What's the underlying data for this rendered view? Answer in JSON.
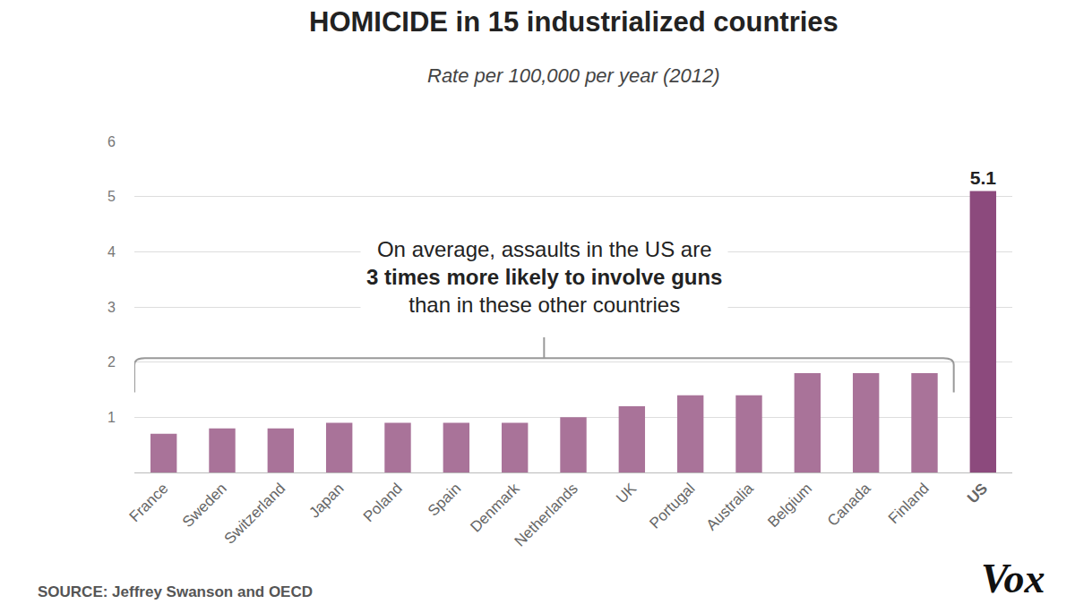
{
  "chart_data": {
    "type": "bar",
    "title": "HOMICIDE in 15 industrialized countries",
    "subtitle": "Rate per 100,000 per year (2012)",
    "categories": [
      "France",
      "Sweden",
      "Switzerland",
      "Japan",
      "Poland",
      "Spain",
      "Denmark",
      "Netherlands",
      "UK",
      "Portugal",
      "Australia",
      "Belgium",
      "Canada",
      "Finland",
      "US"
    ],
    "values": [
      0.7,
      0.8,
      0.8,
      0.9,
      0.9,
      0.9,
      0.9,
      1.0,
      1.2,
      1.4,
      1.4,
      1.8,
      1.8,
      1.8,
      5.1
    ],
    "value_labels": [
      null,
      null,
      null,
      null,
      null,
      null,
      null,
      null,
      null,
      null,
      null,
      null,
      null,
      null,
      "5.1"
    ],
    "data_labels": true,
    "colors": [
      "#a97399",
      "#a97399",
      "#a97399",
      "#a97399",
      "#a97399",
      "#a97399",
      "#a97399",
      "#a97399",
      "#a97399",
      "#a97399",
      "#a97399",
      "#a97399",
      "#a97399",
      "#a97399",
      "#8c4a7d"
    ],
    "ylim": [
      0,
      6
    ],
    "yticks": [
      1,
      2,
      3,
      4,
      5,
      6
    ],
    "grid": true,
    "annotation": [
      "On average, assaults in the US are",
      "3 times more likely to involve guns",
      "than in these other countries"
    ],
    "source": "SOURCE: Jeffrey Swanson and OECD",
    "logo": "Vox"
  }
}
